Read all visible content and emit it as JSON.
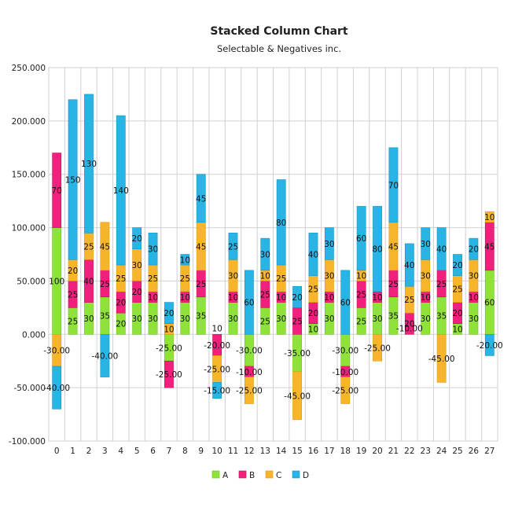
{
  "chart_data": {
    "type": "bar",
    "stacked": true,
    "title": "Stacked Column Chart",
    "subtitle": "Selectable & Negatives inc.",
    "categories": [
      "0",
      "1",
      "2",
      "3",
      "4",
      "5",
      "6",
      "7",
      "8",
      "9",
      "10",
      "11",
      "12",
      "13",
      "14",
      "15",
      "16",
      "17",
      "18",
      "19",
      "20",
      "21",
      "22",
      "23",
      "24",
      "25",
      "26",
      "27"
    ],
    "ylim": [
      -100,
      250
    ],
    "yticks": [
      -100,
      -50,
      0,
      50,
      100,
      150,
      200,
      250
    ],
    "ytick_labels": [
      "-100.000",
      "-50.000",
      "0.000",
      "50.000",
      "100.000",
      "150.000",
      "200.000",
      "250.000"
    ],
    "grid": true,
    "legend_position": "bottom",
    "series": [
      {
        "name": "A",
        "color": "#8fe23a",
        "border": "#6fc21e",
        "values": [
          100,
          25,
          30,
          35,
          20,
          30,
          30,
          -25,
          30,
          35,
          0,
          30,
          -30,
          25,
          30,
          -35,
          10,
          30,
          -30,
          25,
          30,
          35,
          0,
          30,
          35,
          10,
          30,
          60
        ],
        "labels": [
          "100",
          "25",
          "30",
          "35",
          "20",
          "30",
          "30",
          "-25.00",
          "30",
          "35",
          "",
          "30",
          "-30.00",
          "25",
          "30",
          "-35.00",
          "10",
          "30",
          "-30.00",
          "25",
          "30",
          "35",
          "",
          "30",
          "35",
          "10",
          "30",
          "60"
        ]
      },
      {
        "name": "B",
        "color": "#f0207c",
        "border": "#c9105f",
        "values": [
          70,
          25,
          40,
          25,
          20,
          20,
          10,
          -25,
          10,
          25,
          -20,
          10,
          -10,
          25,
          10,
          25,
          20,
          10,
          -10,
          25,
          10,
          25,
          20,
          10,
          25,
          20,
          10,
          45
        ],
        "labels": [
          "70",
          "25",
          "40",
          "25",
          "20",
          "20",
          "10",
          "-25.00",
          "10",
          "25",
          "-20.00",
          "10",
          "-10.00",
          "25",
          "10",
          "25",
          "20",
          "10",
          "-10.00",
          "25",
          "10",
          "25",
          "20",
          "10",
          "25",
          "20",
          "10",
          "45"
        ]
      },
      {
        "name": "C",
        "color": "#f7b52c",
        "border": "#e09a10",
        "values": [
          -30,
          20,
          25,
          45,
          25,
          30,
          25,
          10,
          25,
          45,
          -25,
          30,
          -25,
          10,
          25,
          -45,
          25,
          30,
          -25,
          10,
          -25,
          45,
          25,
          30,
          -45,
          25,
          30,
          10
        ],
        "labels": [
          "-30.00",
          "20",
          "25",
          "45",
          "25",
          "30",
          "25",
          "10",
          "25",
          "45",
          "-25.00",
          "30",
          "-25.00",
          "10",
          "25",
          "-45.00",
          "25",
          "30",
          "-25.00",
          "10",
          "-25.00",
          "45",
          "25",
          "30",
          "-45.00",
          "25",
          "30",
          "10"
        ]
      },
      {
        "name": "D",
        "color": "#28b4e4",
        "border": "#1a95c2",
        "values": [
          -40,
          150,
          130,
          -40,
          140,
          20,
          30,
          20,
          10,
          45,
          -15,
          25,
          60,
          30,
          80,
          20,
          40,
          30,
          60,
          60,
          80,
          70,
          40,
          30,
          40,
          20,
          20,
          -20
        ],
        "labels": [
          "-40.00",
          "150",
          "130",
          "-40.00",
          "140",
          "20",
          "30",
          "20",
          "10",
          "45",
          "-15.00",
          "25",
          "60",
          "30",
          "80",
          "20",
          "40",
          "30",
          "60",
          "60",
          "80",
          "70",
          "40",
          "30",
          "40",
          "20",
          "20",
          "-20.00"
        ]
      }
    ],
    "extra_labels": [
      {
        "category": "10",
        "text": "10"
      },
      {
        "category": "22",
        "text": "-10.00"
      }
    ]
  }
}
